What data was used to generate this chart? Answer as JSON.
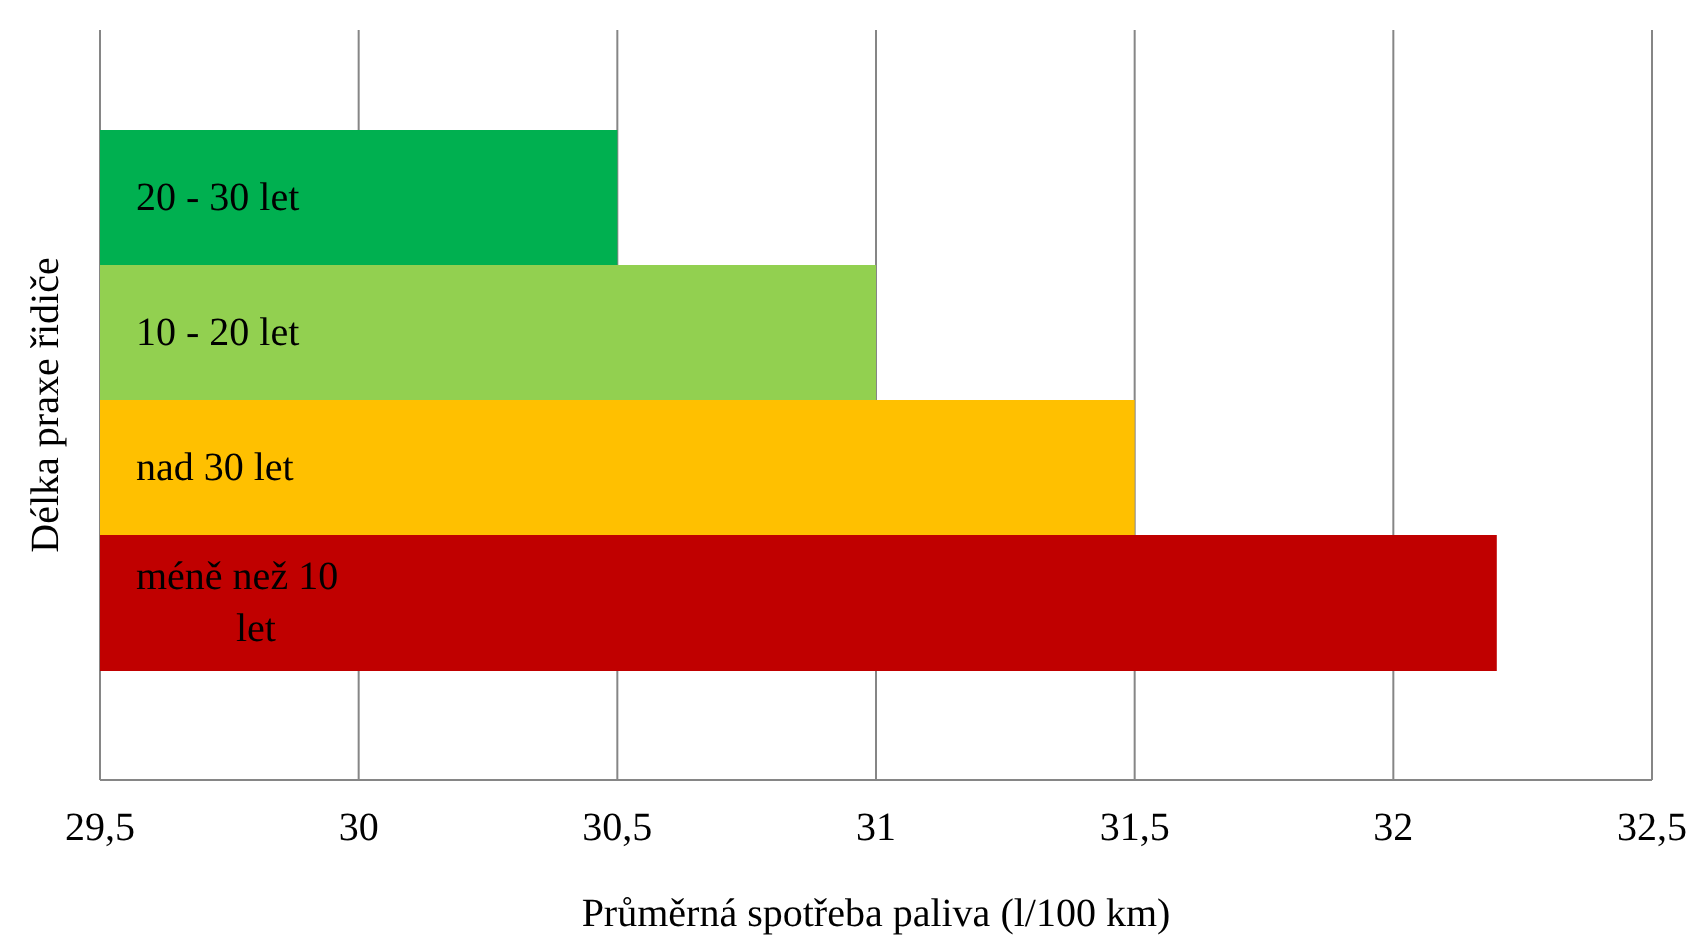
{
  "chart_data": {
    "type": "bar",
    "orientation": "horizontal",
    "xlabel": "Průměrná spotřeba paliva (l/100 km)",
    "ylabel": "Délka praxe řidiče",
    "categories": [
      "20 - 30 let",
      "10 - 20 let",
      "nad 30 let",
      "méně než 10 let"
    ],
    "values": [
      30.5,
      31,
      31.5,
      32.2
    ],
    "colors": [
      "#00b050",
      "#92d050",
      "#ffc000",
      "#c00000"
    ],
    "xlim": [
      29.5,
      32.5
    ],
    "xticks": [
      {
        "value": 29.5,
        "label": "29,5"
      },
      30,
      {
        "value": 30.5,
        "label": "30,5"
      },
      31,
      {
        "value": 31.5,
        "label": "31,5"
      },
      32,
      {
        "value": 32.5,
        "label": "32,5"
      }
    ],
    "grid": "x"
  }
}
